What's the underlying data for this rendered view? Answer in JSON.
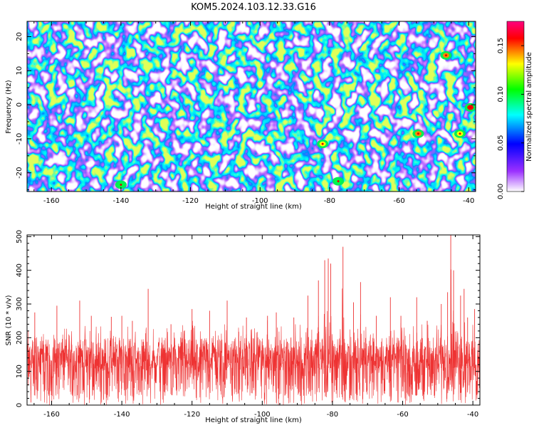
{
  "title": "KOM5.2024.103.12.33.G16",
  "chart_data": [
    {
      "type": "heatmap",
      "xlabel": "Height of straight line (km)",
      "ylabel": "Frequency (Hz)",
      "xlim": [
        -167,
        -38
      ],
      "ylim": [
        -25.5,
        24.5
      ],
      "xticks": [
        -160,
        -140,
        -120,
        -100,
        -80,
        -60,
        -40
      ],
      "yticks": [
        -20,
        -10,
        0,
        10,
        20
      ],
      "colorbar": {
        "label": "Normalized spectral amplitude",
        "range": [
          0,
          0.175
        ],
        "ticks": [
          "0.00",
          "0.05",
          "0.10",
          "0.15"
        ],
        "colors": [
          "#ffffff",
          "#9b30ff",
          "#0000ff",
          "#00ffff",
          "#00ff00",
          "#ffff00",
          "#ff0000",
          "#ff00aa"
        ]
      },
      "hot_spots": [
        {
          "x": -46.5,
          "y": 14.5,
          "value": 0.14
        },
        {
          "x": -39.5,
          "y": -0.8,
          "value": 0.16
        },
        {
          "x": -54.5,
          "y": -8.5,
          "value": 0.13
        },
        {
          "x": -42.5,
          "y": -8.5,
          "value": 0.12
        },
        {
          "x": -82,
          "y": -11.5,
          "value": 0.11
        },
        {
          "x": -77.5,
          "y": -22.5,
          "value": 0.09
        },
        {
          "x": -140,
          "y": -23.5,
          "value": 0.09
        }
      ]
    },
    {
      "type": "line",
      "xlabel": "Height of straight line (km)",
      "ylabel": "SNR (10 * v/v)",
      "xlim": [
        -167,
        -38
      ],
      "ylim": [
        0,
        505
      ],
      "xticks": [
        -160,
        -140,
        -120,
        -100,
        -80,
        -60,
        -40
      ],
      "yticks": [
        0,
        100,
        200,
        300,
        400,
        500
      ],
      "series": [
        {
          "color": "#ee3333",
          "baseline": 110,
          "x": [
            -167,
            -164.8,
            -158.5,
            -152,
            -148.7,
            -143,
            -140,
            -137,
            -132.5,
            -126,
            -120,
            -115,
            -110,
            -104.5,
            -98.5,
            -96,
            -91,
            -87,
            -84,
            -82.2,
            -81.2,
            -80.5,
            -77,
            -74,
            -72,
            -67.5,
            -63.5,
            -60.5,
            -56,
            -53,
            -49,
            -47.2,
            -46.3,
            -45.5,
            -43.5,
            -42.5,
            -41.5,
            -39.5,
            -38
          ],
          "peaks": [
            225,
            275,
            295,
            310,
            265,
            262,
            265,
            250,
            345,
            240,
            285,
            280,
            310,
            260,
            265,
            275,
            260,
            325,
            370,
            430,
            435,
            420,
            470,
            305,
            365,
            265,
            320,
            265,
            320,
            250,
            300,
            335,
            505,
            400,
            325,
            345,
            260,
            285,
            240
          ]
        }
      ]
    }
  ]
}
